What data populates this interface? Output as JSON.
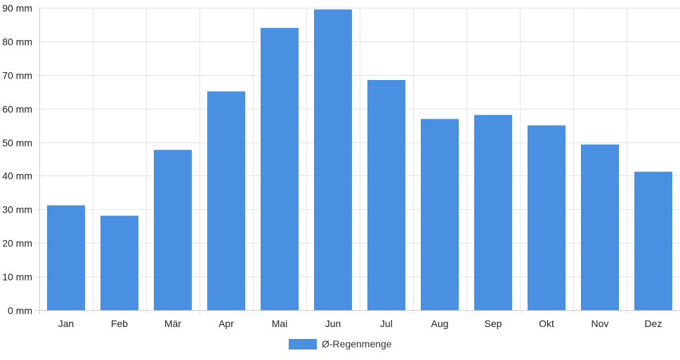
{
  "chart_data": {
    "type": "bar",
    "title": "",
    "xlabel": "",
    "ylabel": "",
    "unit": "mm",
    "categories": [
      "Jan",
      "Feb",
      "Mär",
      "Apr",
      "Mai",
      "Jun",
      "Jul",
      "Aug",
      "Sep",
      "Okt",
      "Nov",
      "Dez"
    ],
    "series": [
      {
        "name": "Ø-Regenmenge",
        "color": "#4a90e2",
        "values": [
          31.2,
          28.1,
          47.7,
          65.1,
          84.0,
          89.5,
          68.5,
          56.9,
          58.1,
          55.0,
          49.3,
          41.2
        ]
      }
    ],
    "ylim": [
      0,
      90
    ],
    "yticks": [
      0,
      10,
      20,
      30,
      40,
      50,
      60,
      70,
      80,
      90
    ],
    "ytick_labels": [
      "0 mm",
      "10 mm",
      "20 mm",
      "30 mm",
      "40 mm",
      "50 mm",
      "60 mm",
      "70 mm",
      "80 mm",
      "90 mm"
    ],
    "grid": true,
    "legend_position": "bottom-center"
  }
}
